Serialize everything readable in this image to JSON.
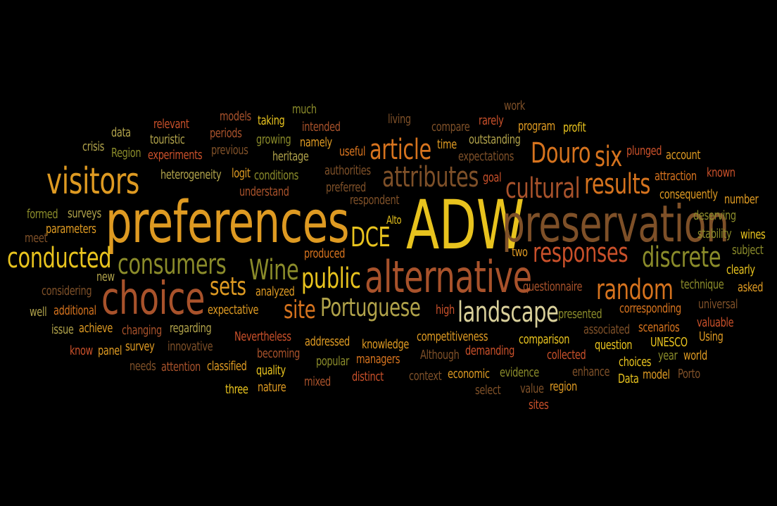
{
  "palette": {
    "background": "#000000",
    "yellow": "#E8C31E",
    "amber": "#DE9A22",
    "orange": "#D6731E",
    "dark_orange": "#C9502A",
    "rust": "#A8522B",
    "brown": "#7E5028",
    "olive": "#8A8B2A",
    "khaki": "#B0A24A"
  },
  "words": [
    {
      "text": "ADW",
      "color": "#E8C31E"
    },
    {
      "text": "preferences",
      "color": "#DE9A22"
    },
    {
      "text": "preservation",
      "color": "#7E5028"
    },
    {
      "text": "alternative",
      "color": "#A8522B"
    },
    {
      "text": "choice",
      "color": "#A8522B"
    },
    {
      "text": "visitors",
      "color": "#DE9A22"
    },
    {
      "text": "conducted",
      "color": "#E8C31E"
    },
    {
      "text": "consumers",
      "color": "#8A8B2A"
    },
    {
      "text": "Portuguese",
      "color": "#B0A24A"
    },
    {
      "text": "landscape",
      "color": "#D8CF9A"
    },
    {
      "text": "attributes",
      "color": "#7E5028"
    },
    {
      "text": "article",
      "color": "#D6731E"
    },
    {
      "text": "Douro",
      "color": "#D6731E"
    },
    {
      "text": "six",
      "color": "#D6731E"
    },
    {
      "text": "cultural",
      "color": "#A8522B"
    },
    {
      "text": "results",
      "color": "#D6731E"
    },
    {
      "text": "responses",
      "color": "#C9502A"
    },
    {
      "text": "discrete",
      "color": "#8A8B2A"
    },
    {
      "text": "random",
      "color": "#D6731E"
    },
    {
      "text": "public",
      "color": "#E8C31E"
    },
    {
      "text": "Wine",
      "color": "#8A8B2A"
    },
    {
      "text": "sets",
      "color": "#DE9A22"
    },
    {
      "text": "site",
      "color": "#D6731E"
    },
    {
      "text": "DCE",
      "color": "#E8C31E"
    },
    {
      "text": "Alto",
      "color": "#E8C31E"
    },
    {
      "text": "relevant",
      "color": "#C9502A"
    },
    {
      "text": "models",
      "color": "#A8522B"
    },
    {
      "text": "taking",
      "color": "#E8C31E"
    },
    {
      "text": "much",
      "color": "#8A8B2A"
    },
    {
      "text": "living",
      "color": "#7E5028"
    },
    {
      "text": "work",
      "color": "#7E5028"
    },
    {
      "text": "touristic",
      "color": "#B0A24A"
    },
    {
      "text": "periods",
      "color": "#A8522B"
    },
    {
      "text": "intended",
      "color": "#A8522B"
    },
    {
      "text": "compare",
      "color": "#7E5028"
    },
    {
      "text": "rarely",
      "color": "#C9502A"
    },
    {
      "text": "program",
      "color": "#DE9A22"
    },
    {
      "text": "profit",
      "color": "#E8C31E"
    },
    {
      "text": "data",
      "color": "#B0A24A"
    },
    {
      "text": "crisis",
      "color": "#B0A24A"
    },
    {
      "text": "Region",
      "color": "#8A8B2A"
    },
    {
      "text": "experiments",
      "color": "#C9502A"
    },
    {
      "text": "previous",
      "color": "#7E5028"
    },
    {
      "text": "growing",
      "color": "#8A8B2A"
    },
    {
      "text": "namely",
      "color": "#DE9A22"
    },
    {
      "text": "useful",
      "color": "#D6731E"
    },
    {
      "text": "time",
      "color": "#DE9A22"
    },
    {
      "text": "outstanding",
      "color": "#B0A24A"
    },
    {
      "text": "expectations",
      "color": "#7E5028"
    },
    {
      "text": "plunged",
      "color": "#C9502A"
    },
    {
      "text": "account",
      "color": "#DE9A22"
    },
    {
      "text": "heritage",
      "color": "#B0A24A"
    },
    {
      "text": "heterogeneity",
      "color": "#B0A24A"
    },
    {
      "text": "logit",
      "color": "#DE9A22"
    },
    {
      "text": "conditions",
      "color": "#8A8B2A"
    },
    {
      "text": "authorities",
      "color": "#7E5028"
    },
    {
      "text": "goal",
      "color": "#C9502A"
    },
    {
      "text": "attraction",
      "color": "#D6731E"
    },
    {
      "text": "known",
      "color": "#C9502A"
    },
    {
      "text": "understand",
      "color": "#A8522B"
    },
    {
      "text": "preferred",
      "color": "#7E5028"
    },
    {
      "text": "respondent",
      "color": "#7E5028"
    },
    {
      "text": "consequently",
      "color": "#DE9A22"
    },
    {
      "text": "number",
      "color": "#DE9A22"
    },
    {
      "text": "formed",
      "color": "#8A8B2A"
    },
    {
      "text": "surveys",
      "color": "#B0A24A"
    },
    {
      "text": "deserving",
      "color": "#8A8B2A"
    },
    {
      "text": "meet",
      "color": "#7E5028"
    },
    {
      "text": "parameters",
      "color": "#DE9A22"
    },
    {
      "text": "stability",
      "color": "#8A8B2A"
    },
    {
      "text": "wines",
      "color": "#E8C31E"
    },
    {
      "text": "produced",
      "color": "#D6731E"
    },
    {
      "text": "two",
      "color": "#DE9A22"
    },
    {
      "text": "subject",
      "color": "#8A8B2A"
    },
    {
      "text": "clearly",
      "color": "#E8C31E"
    },
    {
      "text": "new",
      "color": "#B0A24A"
    },
    {
      "text": "considering",
      "color": "#7E5028"
    },
    {
      "text": "analyzed",
      "color": "#DE9A22"
    },
    {
      "text": "questionnaire",
      "color": "#A8522B"
    },
    {
      "text": "technique",
      "color": "#8A8B2A"
    },
    {
      "text": "asked",
      "color": "#DE9A22"
    },
    {
      "text": "well",
      "color": "#B0A24A"
    },
    {
      "text": "additional",
      "color": "#D6731E"
    },
    {
      "text": "expectative",
      "color": "#DE9A22"
    },
    {
      "text": "high",
      "color": "#C9502A"
    },
    {
      "text": "presented",
      "color": "#8A8B2A"
    },
    {
      "text": "corresponding",
      "color": "#D6731E"
    },
    {
      "text": "universal",
      "color": "#7E5028"
    },
    {
      "text": "issue",
      "color": "#B0A24A"
    },
    {
      "text": "achieve",
      "color": "#DE9A22"
    },
    {
      "text": "changing",
      "color": "#A8522B"
    },
    {
      "text": "regarding",
      "color": "#B0A24A"
    },
    {
      "text": "associated",
      "color": "#7E5028"
    },
    {
      "text": "scenarios",
      "color": "#D6731E"
    },
    {
      "text": "valuable",
      "color": "#C9502A"
    },
    {
      "text": "Nevertheless",
      "color": "#C9502A"
    },
    {
      "text": "addressed",
      "color": "#DE9A22"
    },
    {
      "text": "competitiveness",
      "color": "#DE9A22"
    },
    {
      "text": "comparison",
      "color": "#E8C31E"
    },
    {
      "text": "UNESCO",
      "color": "#E8C31E"
    },
    {
      "text": "Using",
      "color": "#DE9A22"
    },
    {
      "text": "know",
      "color": "#C9502A"
    },
    {
      "text": "panel",
      "color": "#DE9A22"
    },
    {
      "text": "survey",
      "color": "#DE9A22"
    },
    {
      "text": "innovative",
      "color": "#7E5028"
    },
    {
      "text": "knowledge",
      "color": "#DE9A22"
    },
    {
      "text": "Although",
      "color": "#7E5028"
    },
    {
      "text": "demanding",
      "color": "#C9502A"
    },
    {
      "text": "question",
      "color": "#E8C31E"
    },
    {
      "text": "becoming",
      "color": "#A8522B"
    },
    {
      "text": "collected",
      "color": "#C9502A"
    },
    {
      "text": "year",
      "color": "#8A8B2A"
    },
    {
      "text": "world",
      "color": "#DE9A22"
    },
    {
      "text": "needs",
      "color": "#7E5028"
    },
    {
      "text": "attention",
      "color": "#A8522B"
    },
    {
      "text": "classified",
      "color": "#DE9A22"
    },
    {
      "text": "quality",
      "color": "#E8C31E"
    },
    {
      "text": "popular",
      "color": "#8A8B2A"
    },
    {
      "text": "managers",
      "color": "#D6731E"
    },
    {
      "text": "choices",
      "color": "#E8C31E"
    },
    {
      "text": "model",
      "color": "#DE9A22"
    },
    {
      "text": "enhance",
      "color": "#7E5028"
    },
    {
      "text": "Porto",
      "color": "#7E5028"
    },
    {
      "text": "context",
      "color": "#7E5028"
    },
    {
      "text": "economic",
      "color": "#DE9A22"
    },
    {
      "text": "evidence",
      "color": "#8A8B2A"
    },
    {
      "text": "Data",
      "color": "#E8C31E"
    },
    {
      "text": "three",
      "color": "#E8C31E"
    },
    {
      "text": "nature",
      "color": "#DE9A22"
    },
    {
      "text": "mixed",
      "color": "#A8522B"
    },
    {
      "text": "distinct",
      "color": "#C9502A"
    },
    {
      "text": "select",
      "color": "#7E5028"
    },
    {
      "text": "value",
      "color": "#7E5028"
    },
    {
      "text": "region",
      "color": "#DE9A22"
    },
    {
      "text": "sites",
      "color": "#C9502A"
    }
  ]
}
